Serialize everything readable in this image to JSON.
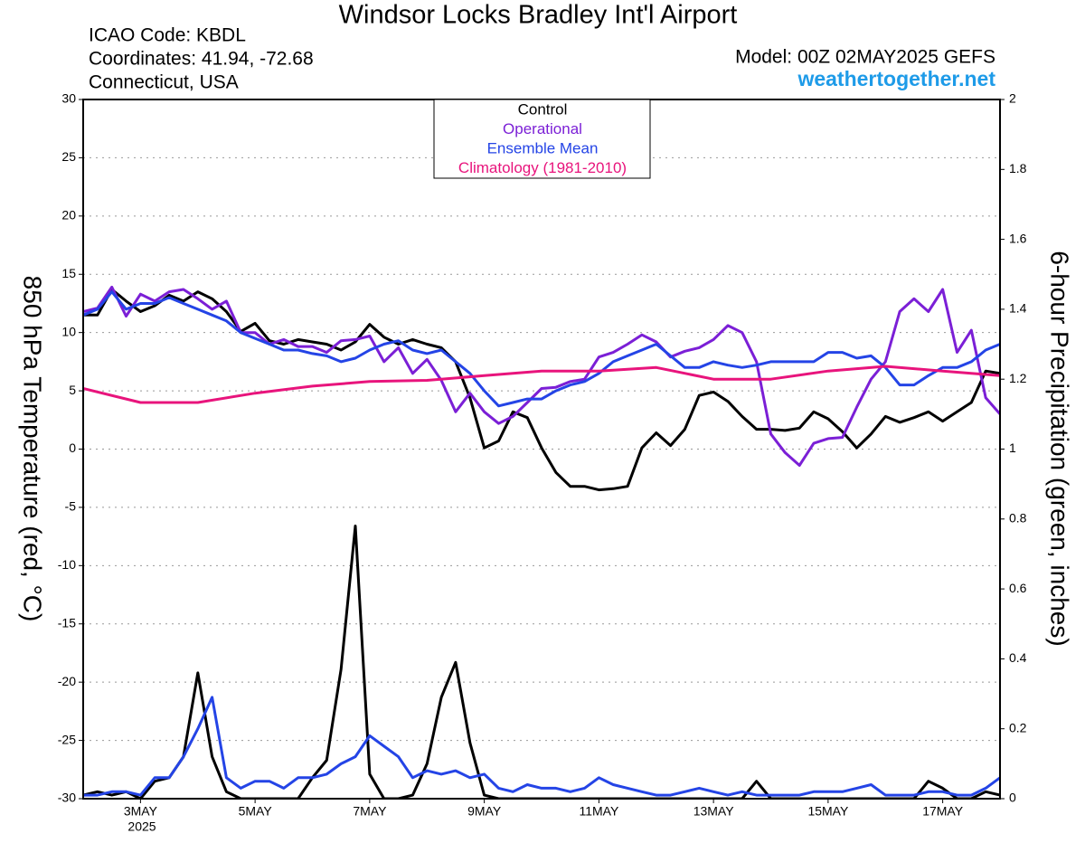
{
  "chart_data": {
    "type": "line",
    "title": "Windsor Locks Bradley Int'l Airport",
    "info_left": [
      "ICAO Code: KBDL",
      "Coordinates: 41.94, -72.68",
      "Connecticut, USA"
    ],
    "model": "Model: 00Z 02MAY2025 GEFS",
    "website": "weathertogether.net",
    "ylabel": "850 hPa Temperature (red, °C)",
    "y2label": "6-hour Precipitation (green, inches)",
    "xlim": [
      2,
      18
    ],
    "xticks": [
      {
        "value": 3,
        "label": "3MAY"
      },
      {
        "value": 5,
        "label": "5MAY"
      },
      {
        "value": 7,
        "label": "7MAY"
      },
      {
        "value": 9,
        "label": "9MAY"
      },
      {
        "value": 11,
        "label": "11MAY"
      },
      {
        "value": 13,
        "label": "13MAY"
      },
      {
        "value": 15,
        "label": "15MAY"
      },
      {
        "value": 17,
        "label": "17MAY"
      }
    ],
    "x_year_label": "2025",
    "ylim": [
      -30,
      30
    ],
    "yticks": [
      -30,
      -25,
      -20,
      -15,
      -10,
      -5,
      0,
      5,
      10,
      15,
      20,
      25,
      30
    ],
    "y2lim": [
      0,
      2
    ],
    "y2ticks": [
      0,
      0.2,
      0.4,
      0.6,
      0.8,
      1,
      1.2,
      1.4,
      1.6,
      1.8,
      2
    ],
    "grid": true,
    "x": [
      2,
      2.25,
      2.5,
      2.75,
      3,
      3.25,
      3.5,
      3.75,
      4,
      4.25,
      4.5,
      4.75,
      5,
      5.25,
      5.5,
      5.75,
      6,
      6.25,
      6.5,
      6.75,
      7,
      7.25,
      7.5,
      7.75,
      8,
      8.25,
      8.5,
      8.75,
      9,
      9.25,
      9.5,
      9.75,
      10,
      10.25,
      10.5,
      10.75,
      11,
      11.25,
      11.5,
      11.75,
      12,
      12.25,
      12.5,
      12.75,
      13,
      13.25,
      13.5,
      13.75,
      14,
      14.25,
      14.5,
      14.75,
      15,
      15.25,
      15.5,
      15.75,
      16,
      16.25,
      16.5,
      16.75,
      17,
      17.25,
      17.5,
      17.75,
      18
    ],
    "series": [
      {
        "name": "Control",
        "color": "#000000",
        "values": [
          11.5,
          11.5,
          13.7,
          12.7,
          11.8,
          12.3,
          13.2,
          12.7,
          13.5,
          12.9,
          11.8,
          10.1,
          10.8,
          9.3,
          9.0,
          9.4,
          9.2,
          9.0,
          8.5,
          9.2,
          10.7,
          9.6,
          9.0,
          9.4,
          9.0,
          8.7,
          7.5,
          4.4,
          0.1,
          0.7,
          3.2,
          2.7,
          0.1,
          -2.0,
          -3.2,
          -3.2,
          -3.5,
          -3.4,
          -3.2,
          0.1,
          1.4,
          0.3,
          1.7,
          4.6,
          4.9,
          4.1,
          2.8,
          1.7,
          1.7,
          1.6,
          1.8,
          3.2,
          2.6,
          1.5,
          0.1,
          1.3,
          2.8,
          2.3,
          2.7,
          3.2,
          2.4,
          3.2,
          4.0,
          6.7,
          6.5
        ]
      },
      {
        "name": "Operational",
        "color": "#7b1fd6",
        "values": [
          11.8,
          12.1,
          13.9,
          11.4,
          13.3,
          12.7,
          13.5,
          13.7,
          12.9,
          12.0,
          12.7,
          10.0,
          10.0,
          9.0,
          9.4,
          8.8,
          8.8,
          8.3,
          9.3,
          9.4,
          9.7,
          7.5,
          8.7,
          6.5,
          7.7,
          5.9,
          3.2,
          4.8,
          3.2,
          2.2,
          2.8,
          4.0,
          5.2,
          5.3,
          5.8,
          6.0,
          7.9,
          8.3,
          9.0,
          9.8,
          9.2,
          7.9,
          8.4,
          8.7,
          9.4,
          10.6,
          10.0,
          7.5,
          1.3,
          -0.3,
          -1.4,
          0.5,
          0.9,
          1.0,
          3.6,
          6.0,
          7.5,
          11.8,
          12.9,
          11.8,
          13.7,
          8.3,
          10.2,
          4.4,
          3.0
        ]
      },
      {
        "name": "Ensemble Mean",
        "color": "#2444e6",
        "values": [
          11.5,
          12.0,
          13.5,
          12.0,
          12.5,
          12.5,
          13.0,
          12.5,
          12.0,
          11.5,
          11.0,
          10.0,
          9.5,
          9.0,
          8.5,
          8.5,
          8.2,
          8.0,
          7.5,
          7.8,
          8.5,
          9.0,
          9.3,
          8.5,
          8.2,
          8.5,
          7.5,
          6.5,
          5.0,
          3.7,
          4.0,
          4.3,
          4.3,
          5.0,
          5.5,
          5.8,
          6.5,
          7.5,
          8.0,
          8.5,
          9.0,
          8.0,
          7.0,
          7.0,
          7.5,
          7.2,
          7.0,
          7.2,
          7.5,
          7.5,
          7.5,
          7.5,
          8.3,
          8.3,
          7.8,
          8.0,
          7.0,
          5.5,
          5.5,
          6.3,
          7.0,
          7.0,
          7.5,
          8.5,
          9.0
        ]
      },
      {
        "name": "Climatology (1981-2010)",
        "color": "#e8147c",
        "x": [
          2,
          3,
          4,
          5,
          6,
          7,
          8,
          9,
          10,
          11,
          12,
          13,
          14,
          15,
          16,
          17,
          18
        ],
        "values": [
          5.2,
          4.0,
          4.0,
          4.8,
          5.4,
          5.8,
          5.9,
          6.3,
          6.7,
          6.7,
          7.0,
          6.0,
          6.0,
          6.7,
          7.1,
          6.7,
          6.3
        ]
      },
      {
        "axis": "y2",
        "color": "#000000",
        "values": [
          0.01,
          0.02,
          0.01,
          0.02,
          0,
          0.05,
          0.06,
          0.12,
          0.36,
          0.12,
          0.02,
          0,
          0,
          0,
          0,
          0,
          0.06,
          0.11,
          0.37,
          0.78,
          0.07,
          0,
          0,
          0.01,
          0.1,
          0.29,
          0.39,
          0.16,
          0.01,
          0,
          0,
          0,
          0,
          0,
          0,
          0,
          0,
          0,
          0,
          0,
          0,
          0,
          0,
          0,
          0,
          0,
          0,
          0.05,
          0,
          0,
          0,
          0,
          0,
          0,
          0,
          0,
          0,
          0,
          0,
          0.05,
          0.03,
          0,
          0,
          0.02,
          0.01
        ]
      },
      {
        "axis": "y2",
        "color": "#2444e6",
        "values": [
          0.01,
          0.01,
          0.02,
          0.02,
          0.01,
          0.06,
          0.06,
          0.12,
          0.2,
          0.29,
          0.06,
          0.03,
          0.05,
          0.05,
          0.03,
          0.06,
          0.06,
          0.07,
          0.1,
          0.12,
          0.18,
          0.15,
          0.12,
          0.06,
          0.08,
          0.07,
          0.08,
          0.06,
          0.07,
          0.03,
          0.02,
          0.04,
          0.03,
          0.03,
          0.02,
          0.03,
          0.06,
          0.04,
          0.03,
          0.02,
          0.01,
          0.01,
          0.02,
          0.03,
          0.02,
          0.01,
          0.02,
          0.01,
          0.01,
          0.01,
          0.01,
          0.02,
          0.02,
          0.02,
          0.03,
          0.04,
          0.01,
          0.01,
          0.01,
          0.02,
          0.02,
          0.01,
          0.01,
          0.03,
          0.06
        ]
      }
    ]
  }
}
